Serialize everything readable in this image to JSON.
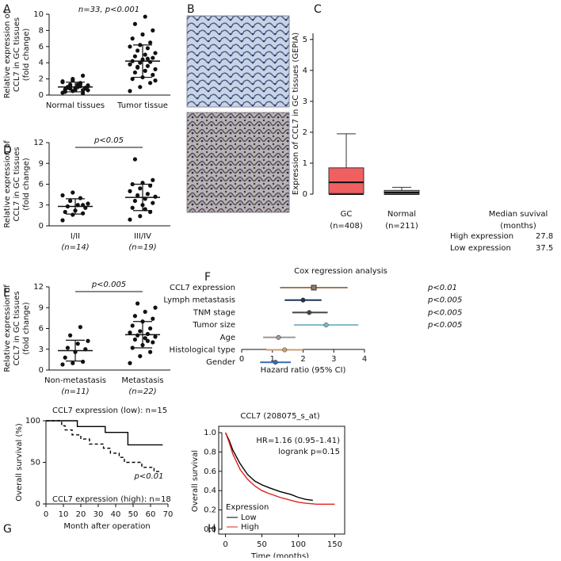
{
  "chart_data": [
    {
      "type": "dotplot",
      "panel_label": "A",
      "ylabel": [
        "Relative expression of",
        "CCL7 in GC tissues",
        "(fold change)"
      ],
      "annotation": "n=33, p<0.001",
      "bracket": false,
      "categories": [
        "Normal tissues",
        "Tumor tissue"
      ],
      "groups": [
        {
          "values": [
            0.3,
            0.5,
            0.6,
            0.7,
            0.8,
            0.9,
            1.0,
            1.1,
            1.2,
            1.3,
            1.5,
            1.7,
            2.0,
            2.4,
            0.4,
            0.6,
            0.8,
            0.9,
            1.0,
            1.1,
            1.2,
            1.4,
            1.6,
            1.8,
            0.2,
            0.5,
            0.7,
            0.9,
            1.0,
            1.3,
            0.6,
            0.8,
            1.1
          ],
          "mean": 1.0,
          "sd": 0.6
        },
        {
          "values": [
            0.5,
            1.0,
            1.5,
            2.0,
            2.2,
            2.5,
            2.8,
            3.0,
            3.2,
            3.4,
            3.6,
            3.8,
            4.0,
            4.1,
            4.2,
            4.4,
            4.6,
            4.8,
            5.0,
            5.2,
            5.5,
            5.8,
            6.0,
            6.2,
            6.5,
            7.0,
            7.5,
            8.0,
            8.8,
            9.7,
            1.8,
            3.5,
            4.5
          ],
          "mean": 4.2,
          "sd": 2.0
        }
      ],
      "ylim": [
        0,
        10
      ],
      "yticks": [
        0,
        2,
        4,
        6,
        8,
        10
      ]
    },
    {
      "type": "image",
      "panel_label": "B"
    },
    {
      "type": "box",
      "panel_label": "C",
      "ylabel": "Expression of CCL7 in GC tissues (GEPIA)",
      "categories": [
        "GC",
        "Normal"
      ],
      "category_notes": [
        "(n=408)",
        "(n=211)"
      ],
      "boxes": [
        {
          "color": "#f06060",
          "whisker_low": 0,
          "q1": 0.02,
          "median": 0.38,
          "q3": 0.85,
          "whisker_high": 1.95
        },
        {
          "color": "#909090",
          "whisker_low": 0,
          "q1": 0.0,
          "median": 0.05,
          "q3": 0.12,
          "whisker_high": 0.22
        }
      ],
      "ylim": [
        0,
        5.2
      ],
      "yticks": [
        0,
        1,
        2,
        3,
        4,
        5
      ],
      "survival_table": {
        "title": [
          "Median suvival",
          "(months)"
        ],
        "rows": [
          [
            "High expression",
            27.8
          ],
          [
            "Low expression",
            37.5
          ]
        ]
      }
    },
    {
      "type": "dotplot",
      "panel_label": "D",
      "ylabel": [
        "Relative expression of",
        "CCL7 in GC tissues",
        "(fold change)"
      ],
      "annotation": "p<0.05",
      "bracket": true,
      "categories": [
        "I/II",
        "III/IV"
      ],
      "category_notes": [
        "(n=14)",
        "(n=19)"
      ],
      "groups": [
        {
          "values": [
            0.8,
            1.6,
            1.8,
            2.0,
            2.2,
            2.6,
            2.8,
            3.0,
            3.2,
            3.6,
            4.0,
            4.4,
            4.8,
            3.0
          ],
          "mean": 2.8,
          "sd": 1.1
        },
        {
          "values": [
            0.9,
            1.4,
            2.0,
            2.6,
            3.0,
            3.3,
            3.6,
            3.9,
            4.2,
            4.4,
            4.6,
            5.0,
            5.4,
            5.8,
            6.0,
            6.2,
            6.6,
            9.6,
            2.4
          ],
          "mean": 4.1,
          "sd": 1.9
        }
      ],
      "ylim": [
        0,
        12
      ],
      "yticks": [
        0,
        3,
        6,
        9,
        12
      ]
    },
    {
      "type": "dotplot",
      "panel_label": "E",
      "ylabel": [
        "Relative expression of",
        "CCL7 in GC tissues",
        "(fold change)"
      ],
      "annotation": "p<0.005",
      "bracket": true,
      "categories": [
        "Non-metastasis",
        "Metastasis"
      ],
      "category_notes": [
        "(n=11)",
        "(n=22)"
      ],
      "groups": [
        {
          "values": [
            0.8,
            1.0,
            1.2,
            1.8,
            2.6,
            3.0,
            3.2,
            3.8,
            4.2,
            5.0,
            6.2
          ],
          "mean": 2.8,
          "sd": 1.5
        },
        {
          "values": [
            1.0,
            2.0,
            2.6,
            3.2,
            3.6,
            4.0,
            4.4,
            4.6,
            4.8,
            5.0,
            5.2,
            5.4,
            5.6,
            6.0,
            6.4,
            7.0,
            7.4,
            7.8,
            8.4,
            9.0,
            9.6,
            4.2
          ],
          "mean": 5.1,
          "sd": 1.9
        }
      ],
      "ylim": [
        0,
        12
      ],
      "yticks": [
        0,
        3,
        6,
        9,
        12
      ]
    },
    {
      "type": "forest",
      "panel_label": "F",
      "title": "Cox regression analysis",
      "xlabel": "Hazard ratio (95% CI)",
      "rows": [
        {
          "name": "CCL7 expression",
          "hr": 2.35,
          "low": 1.25,
          "high": 3.45,
          "color": "#a0785a",
          "p": "p<0.01"
        },
        {
          "name": "Lymph metastasis",
          "hr": 2.0,
          "low": 1.4,
          "high": 2.6,
          "color": "#1f3450",
          "p": "p<0.005"
        },
        {
          "name": "TNM stage",
          "hr": 2.2,
          "low": 1.65,
          "high": 2.8,
          "color": "#444444",
          "p": "p<0.005"
        },
        {
          "name": "Tumor size",
          "hr": 2.75,
          "low": 1.7,
          "high": 3.8,
          "color": "#7fb8c8",
          "p": "p<0.005"
        },
        {
          "name": "Age",
          "hr": 1.2,
          "low": 0.7,
          "high": 1.75,
          "color": "#999999"
        },
        {
          "name": "Histological type",
          "hr": 1.4,
          "low": 0.8,
          "high": 2.0,
          "color": "#c8a070"
        },
        {
          "name": "Gender",
          "hr": 1.1,
          "low": 0.6,
          "high": 1.6,
          "color": "#3a6ab0"
        }
      ],
      "xlim": [
        0,
        4
      ],
      "xticks": [
        0,
        1,
        2,
        3,
        4
      ]
    },
    {
      "type": "km",
      "panel_label": "G",
      "ylabel": "Overall survival (%)",
      "xlabel": "Month after operation",
      "annotations": [
        "CCL7 expression (low): n=15",
        "p<0.01",
        "CCL7 expression (high): n=18"
      ],
      "series": [
        {
          "color": "#000000",
          "dash": false,
          "x": [
            0,
            18,
            18,
            34,
            34,
            47,
            47,
            67
          ],
          "values": [
            100,
            100,
            93,
            93,
            86,
            86,
            71,
            71
          ]
        },
        {
          "color": "#000000",
          "dash": true,
          "x": [
            0,
            9,
            9,
            11,
            11,
            15,
            15,
            20,
            20,
            25,
            25,
            33,
            33,
            37,
            37,
            42,
            42,
            45,
            45,
            55,
            55,
            62,
            62,
            66
          ],
          "values": [
            100,
            100,
            94,
            94,
            89,
            89,
            83,
            83,
            78,
            78,
            72,
            72,
            67,
            67,
            61,
            61,
            56,
            56,
            50,
            50,
            44,
            44,
            39,
            39
          ]
        }
      ],
      "xlim": [
        0,
        70
      ],
      "xticks": [
        0,
        10,
        20,
        30,
        40,
        50,
        60,
        70
      ],
      "ylim": [
        0,
        100
      ],
      "yticks": [
        0,
        50,
        100
      ]
    },
    {
      "type": "km",
      "panel_label": "H",
      "title": "CCL7 (208075_s_at)",
      "ylabel": "Overall survival",
      "xlabel": "Time (months)",
      "annotations": [
        "HR=1.16 (0.95–1.41)",
        "logrank p=0.15"
      ],
      "legend_title": "Expression",
      "frame": true,
      "series": [
        {
          "name": "Low",
          "color": "#000000",
          "dash": false,
          "x": [
            0,
            5,
            10,
            20,
            30,
            40,
            50,
            60,
            75,
            90,
            100,
            110,
            120
          ],
          "values": [
            1.0,
            0.92,
            0.82,
            0.68,
            0.57,
            0.5,
            0.46,
            0.43,
            0.39,
            0.36,
            0.33,
            0.31,
            0.3
          ]
        },
        {
          "name": "High",
          "color": "#e02020",
          "dash": false,
          "x": [
            0,
            5,
            10,
            20,
            30,
            40,
            50,
            60,
            75,
            90,
            100,
            110,
            125,
            150
          ],
          "values": [
            1.0,
            0.9,
            0.78,
            0.62,
            0.52,
            0.45,
            0.4,
            0.37,
            0.33,
            0.3,
            0.28,
            0.27,
            0.26,
            0.26
          ]
        }
      ],
      "xlim": [
        -5,
        155
      ],
      "xticks": [
        0,
        50,
        100,
        150
      ],
      "ylim": [
        0,
        1.0
      ],
      "yticks": [
        {
          "value": 0,
          "label": "0.0"
        },
        0.2,
        0.4,
        0.6,
        0.8,
        {
          "value": 1,
          "label": "1.0"
        }
      ]
    }
  ]
}
